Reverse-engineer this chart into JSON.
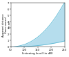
{
  "title": "",
  "xlabel": "Listening level (in dB)",
  "ylabel": "Apparent distance\n(from source)\n(in m)",
  "xlim": [
    50,
    250
  ],
  "ylim": [
    0,
    7
  ],
  "xticks": [
    50,
    100,
    150,
    200,
    250
  ],
  "yticks": [
    0,
    1,
    2,
    3,
    4,
    5,
    6,
    7
  ],
  "fill_color": "#a8d8ea",
  "fill_alpha": 0.85,
  "line_color": "#5bb8d4",
  "line_width": 0.6,
  "background_color": "#ffffff",
  "xlabel_fontsize": 3.0,
  "ylabel_fontsize": 2.6,
  "tick_fontsize": 2.6
}
